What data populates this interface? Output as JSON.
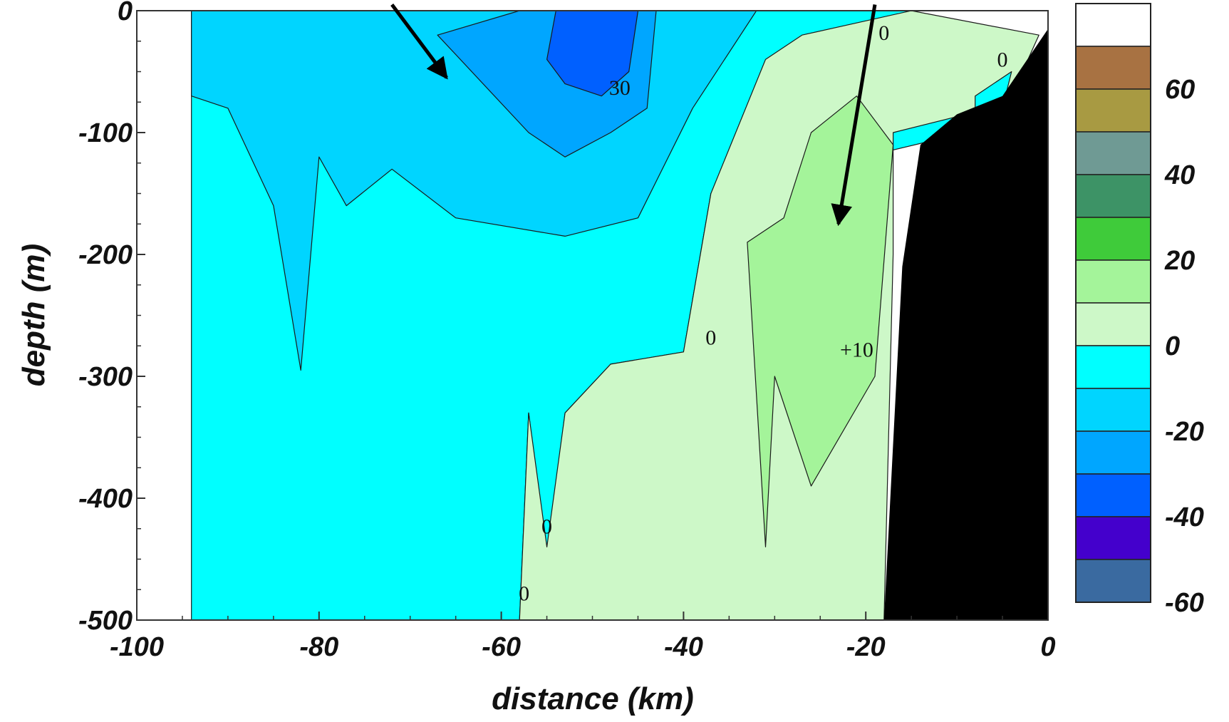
{
  "chart_data": {
    "type": "contour",
    "title": "",
    "xlabel": "distance (km)",
    "ylabel": "depth (m)",
    "xlim": [
      -100,
      0
    ],
    "ylim": [
      -500,
      0
    ],
    "x_ticks": [
      "-100",
      "-80",
      "-60",
      "-40",
      "-20",
      "0"
    ],
    "y_ticks": [
      "0",
      "-100",
      "-200",
      "-300",
      "-400",
      "-500"
    ],
    "grid": false,
    "colorbar": {
      "ticks": [
        "60",
        "40",
        "20",
        "0",
        "-20",
        "-40",
        "-60"
      ],
      "bands": [
        {
          "from": 70,
          "to": 80,
          "color": "#ffffff"
        },
        {
          "from": 60,
          "to": 70,
          "color": "#a87242"
        },
        {
          "from": 50,
          "to": 60,
          "color": "#a89a42"
        },
        {
          "from": 40,
          "to": 50,
          "color": "#6f9a94"
        },
        {
          "from": 30,
          "to": 40,
          "color": "#3d9366"
        },
        {
          "from": 20,
          "to": 30,
          "color": "#3fcb3a"
        },
        {
          "from": 10,
          "to": 20,
          "color": "#a4f49a"
        },
        {
          "from": 0,
          "to": 10,
          "color": "#cdf8c8"
        },
        {
          "from": -10,
          "to": 0,
          "color": "#00ffff"
        },
        {
          "from": -20,
          "to": -10,
          "color": "#00d5ff"
        },
        {
          "from": -30,
          "to": -20,
          "color": "#00a6ff"
        },
        {
          "from": -40,
          "to": -30,
          "color": "#0060ff"
        },
        {
          "from": -50,
          "to": -40,
          "color": "#4400cc"
        },
        {
          "from": -60,
          "to": -50,
          "color": "#3a6aa0"
        }
      ]
    },
    "regions": [
      {
        "level_range": [
          -10,
          0
        ],
        "color": "#00ffff",
        "points": [
          [
            -94,
            0
          ],
          [
            -15,
            0
          ],
          [
            -6,
            -60
          ],
          [
            -9,
            -100
          ],
          [
            -37,
            -150
          ],
          [
            -40,
            -280
          ],
          [
            -48,
            -290
          ],
          [
            -53,
            -330
          ],
          [
            -55,
            -450
          ],
          [
            -57,
            -330
          ],
          [
            -58,
            -500
          ],
          [
            -94,
            -500
          ]
        ]
      },
      {
        "level_range": [
          -20,
          -10
        ],
        "color": "#00d5ff",
        "points": [
          [
            -94,
            0
          ],
          [
            -32,
            0
          ],
          [
            -39,
            -80
          ],
          [
            -45,
            -170
          ],
          [
            -53,
            -185
          ],
          [
            -65,
            -170
          ],
          [
            -72,
            -130
          ],
          [
            -77,
            -160
          ],
          [
            -80,
            -120
          ],
          [
            -82,
            -295
          ],
          [
            -85,
            -160
          ],
          [
            -90,
            -80
          ],
          [
            -94,
            -70
          ]
        ]
      },
      {
        "level_range": [
          -30,
          -20
        ],
        "color": "#00a6ff",
        "points": [
          [
            -67,
            -20
          ],
          [
            -58,
            0
          ],
          [
            -43,
            0
          ],
          [
            -44,
            -80
          ],
          [
            -48,
            -100
          ],
          [
            -53,
            -120
          ],
          [
            -57,
            -100
          ]
        ]
      },
      {
        "level_range": [
          -40,
          -30
        ],
        "color": "#0060ff",
        "points": [
          [
            -54,
            0
          ],
          [
            -45,
            0
          ],
          [
            -46,
            -50
          ],
          [
            -49,
            -70
          ],
          [
            -53,
            -60
          ],
          [
            -55,
            -40
          ]
        ]
      },
      {
        "level_range": [
          0,
          10
        ],
        "color": "#cdf8c8",
        "points": [
          [
            -15,
            0
          ],
          [
            -1,
            -20
          ],
          [
            -4,
            -70
          ],
          [
            -9,
            -85
          ],
          [
            -17,
            -100
          ],
          [
            -17,
            -200
          ],
          [
            -18,
            -500
          ],
          [
            -58,
            -500
          ],
          [
            -57,
            -330
          ],
          [
            -55,
            -440
          ],
          [
            -53,
            -330
          ],
          [
            -48,
            -290
          ],
          [
            -40,
            -280
          ],
          [
            -37,
            -150
          ],
          [
            -31,
            -40
          ],
          [
            -27,
            -20
          ]
        ]
      },
      {
        "level_range": [
          10,
          20
        ],
        "color": "#a4f49a",
        "points": [
          [
            -21,
            -70
          ],
          [
            -17,
            -110
          ],
          [
            -19,
            -300
          ],
          [
            -26,
            -390
          ],
          [
            -30,
            -300
          ],
          [
            -31,
            -440
          ],
          [
            -33,
            -190
          ],
          [
            -29,
            -170
          ],
          [
            -26,
            -100
          ]
        ]
      },
      {
        "level_range": [
          -10,
          0
        ],
        "color": "#00ffff",
        "points": [
          [
            -8,
            -70
          ],
          [
            -4,
            -50
          ],
          [
            -5,
            -80
          ],
          [
            -8,
            -85
          ]
        ]
      }
    ],
    "land_mask": {
      "color": "#000000",
      "points": [
        [
          0,
          -15
        ],
        [
          0,
          -500
        ],
        [
          -18,
          -500
        ],
        [
          -16,
          -210
        ],
        [
          -14,
          -110
        ],
        [
          -10,
          -85
        ],
        [
          -5,
          -70
        ]
      ]
    },
    "contour_labels": [
      {
        "text": "0",
        "x": -18,
        "y": -20
      },
      {
        "text": "0",
        "x": -5,
        "y": -42
      },
      {
        "text": "30",
        "x": -47,
        "y": -65
      },
      {
        "text": "0",
        "x": -37,
        "y": -270
      },
      {
        "text": "+10",
        "x": -21,
        "y": -280
      },
      {
        "text": "0",
        "x": -55,
        "y": -425
      },
      {
        "text": "0",
        "x": -57.5,
        "y": -480
      }
    ],
    "annotation_arrows": [
      {
        "from": [
          -72,
          5
        ],
        "to": [
          -66,
          -55
        ]
      },
      {
        "from": [
          -19,
          5
        ],
        "to": [
          -23,
          -175
        ]
      }
    ]
  }
}
